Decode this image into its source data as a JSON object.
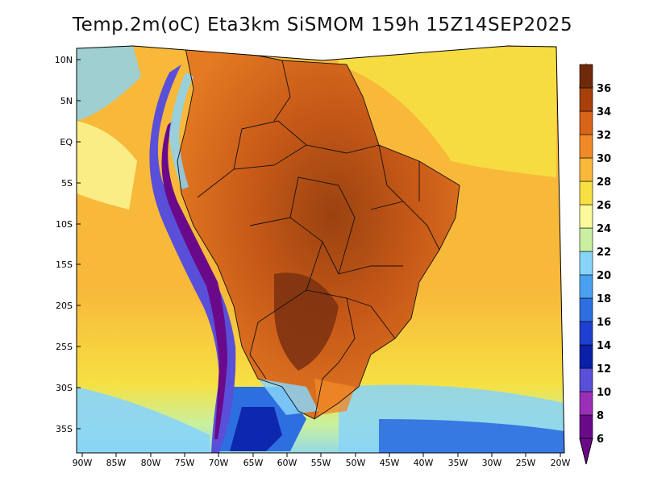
{
  "title": "Temp.2m(oC) Eta3km SiSMOM 159h 15Z14SEP2025",
  "lat_labels": [
    "10N",
    "5N",
    "EQ",
    "5S",
    "10S",
    "15S",
    "20S",
    "25S",
    "30S",
    "35S"
  ],
  "lon_labels": [
    "90W",
    "85W",
    "80W",
    "75W",
    "70W",
    "65W",
    "60W",
    "55W",
    "50W",
    "45W",
    "40W",
    "35W",
    "30W",
    "25W",
    "20W"
  ],
  "colorbar": {
    "labels": [
      "6",
      "8",
      "10",
      "12",
      "14",
      "16",
      "18",
      "20",
      "22",
      "24",
      "26",
      "28",
      "30",
      "32",
      "34",
      "36"
    ],
    "colors": [
      "#6a0a8a",
      "#9b2fb8",
      "#5a4fd8",
      "#0a20a8",
      "#1e3fd0",
      "#2d6fe0",
      "#4aa0f0",
      "#88d4f8",
      "#c8f0a0",
      "#fafa9a",
      "#f6e042",
      "#f8b83a",
      "#f08a28",
      "#d86418",
      "#a8400c",
      "#6e2a0a"
    ]
  }
}
